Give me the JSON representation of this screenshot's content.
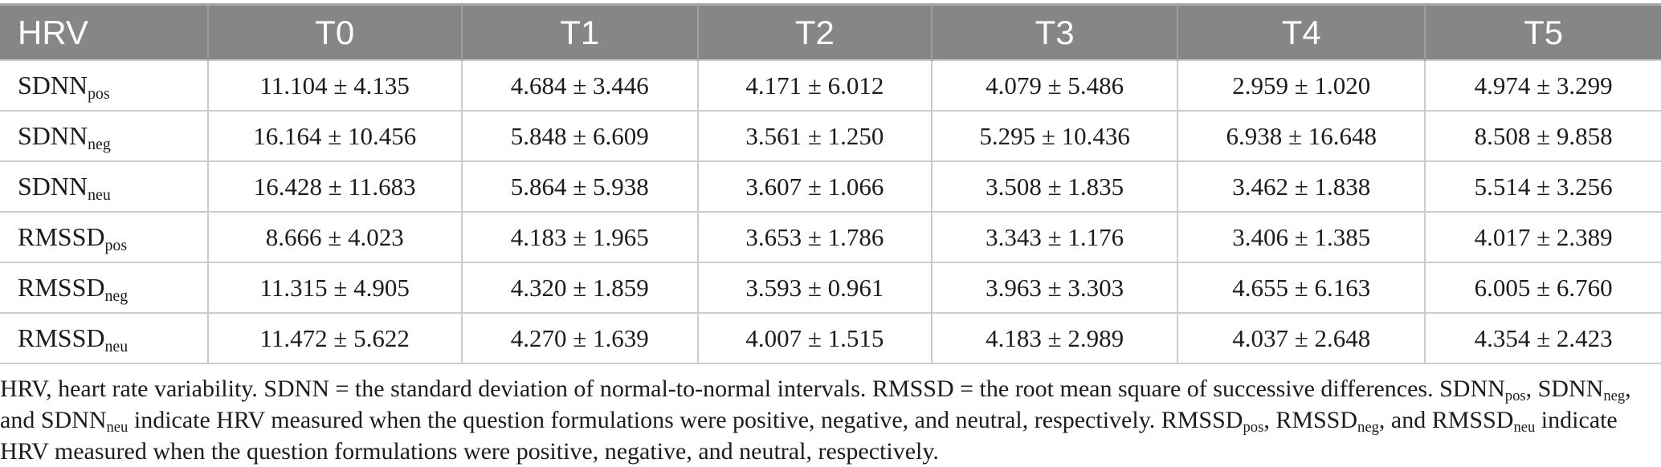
{
  "colors": {
    "header_bg": "#868686",
    "header_text": "#fdfdfd",
    "header_divider": "#9e9e9e",
    "body_border": "#cccccc",
    "text": "#1c1c1c"
  },
  "table": {
    "columns": [
      "HRV",
      "T0",
      "T1",
      "T2",
      "T3",
      "T4",
      "T5"
    ],
    "rows": [
      {
        "label_base": "SDNN",
        "label_sub": "pos",
        "values": [
          "11.104 ± 4.135",
          "4.684 ± 3.446",
          "4.171 ± 6.012",
          "4.079 ± 5.486",
          "2.959 ± 1.020",
          "4.974 ± 3.299"
        ]
      },
      {
        "label_base": "SDNN",
        "label_sub": "neg",
        "values": [
          "16.164 ± 10.456",
          "5.848 ± 6.609",
          "3.561 ± 1.250",
          "5.295 ± 10.436",
          "6.938 ± 16.648",
          "8.508 ± 9.858"
        ]
      },
      {
        "label_base": "SDNN",
        "label_sub": "neu",
        "values": [
          "16.428 ± 11.683",
          "5.864 ± 5.938",
          "3.607 ± 1.066",
          "3.508 ± 1.835",
          "3.462 ± 1.838",
          "5.514 ± 3.256"
        ]
      },
      {
        "label_base": "RMSSD",
        "label_sub": "pos",
        "values": [
          "8.666 ± 4.023",
          "4.183 ± 1.965",
          "3.653 ± 1.786",
          "3.343 ± 1.176",
          "3.406 ± 1.385",
          "4.017 ± 2.389"
        ]
      },
      {
        "label_base": "RMSSD",
        "label_sub": "neg",
        "values": [
          "11.315 ± 4.905",
          "4.320 ± 1.859",
          "3.593 ± 0.961",
          "3.963 ± 3.303",
          "4.655 ± 6.163",
          "6.005 ± 6.760"
        ]
      },
      {
        "label_base": "RMSSD",
        "label_sub": "neu",
        "values": [
          "11.472 ± 5.622",
          "4.270 ± 1.639",
          "4.007 ± 1.515",
          "4.183 ± 2.989",
          "4.037 ± 2.648",
          "4.354 ± 2.423"
        ]
      }
    ]
  },
  "footnote": {
    "segments": [
      {
        "text": "HRV, heart rate variability. SDNN = the standard deviation of normal-to-normal intervals. RMSSD = the root mean square of successive differences. SDNN"
      },
      {
        "sub": "pos"
      },
      {
        "text": ", SDNN"
      },
      {
        "sub": "neg"
      },
      {
        "text": ", and SDNN"
      },
      {
        "sub": "neu"
      },
      {
        "text": " indicate HRV measured when the question formulations were positive, negative, and neutral, respectively. RMSSD"
      },
      {
        "sub": "pos"
      },
      {
        "text": ", RMSSD"
      },
      {
        "sub": "neg"
      },
      {
        "text": ", and RMSSD"
      },
      {
        "sub": "neu"
      },
      {
        "text": " indicate HRV measured when the question formulations were positive, negative, and neutral, respectively."
      }
    ]
  }
}
